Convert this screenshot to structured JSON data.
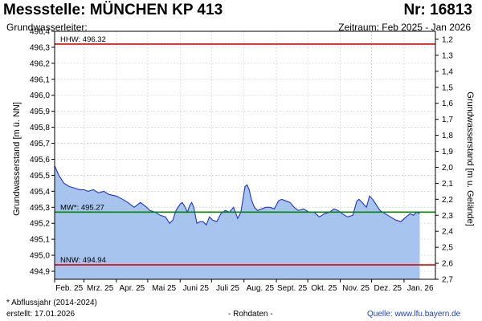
{
  "header": {
    "title": "Messstelle: MÜNCHEN KP 413",
    "number": "Nr: 16813",
    "aquifer": "Grundwasserleiter:",
    "period": "Zeitraum: Feb 2025 - Jan 2026"
  },
  "footer": {
    "footnote": "* Abflussjahr (2014-2024)",
    "created": "erstellt:  17.01.2026",
    "raw": "- Rohdaten -",
    "source": "Quelle:  www.lfu.bayern.de"
  },
  "colors": {
    "area_fill": "#a6c4ee",
    "line": "#2233cc",
    "hhw": "#dd0000",
    "nnw": "#dd0000",
    "mw": "#008800",
    "grid": "#d6d6d6"
  },
  "chart_data": {
    "type": "area",
    "ylabel": "Grundwasserstand [m ü. NN]",
    "y2label": "Grundwasserstand [m u. Gelände]",
    "ylim": [
      494.85,
      496.4
    ],
    "y2lim": [
      2.7,
      1.15
    ],
    "yticks": [
      "494,9",
      "495,0",
      "495,1",
      "495,2",
      "495,3",
      "495,4",
      "495,5",
      "495,6",
      "495,7",
      "495,8",
      "495,9",
      "496,0",
      "496,1",
      "496,2",
      "496,3",
      "496,4"
    ],
    "y2ticks": [
      "1,2",
      "1,3",
      "1,4",
      "1,5",
      "1,6",
      "1,7",
      "1,8",
      "1,9",
      "2,0",
      "2,1",
      "2,2",
      "2,3",
      "2,4",
      "2,5",
      "2,6",
      "2,7"
    ],
    "xlim": [
      "2025-02-01",
      "2026-01-31"
    ],
    "xticks": [
      "Feb. 25",
      "Mrz. 25",
      "Apr. 25",
      "Mai 25",
      "Juni 25",
      "Juli 25",
      "Aug. 25",
      "Sept. 25",
      "Okt. 25",
      "Nov. 25",
      "Dez. 25",
      "Jan. 26"
    ],
    "grid": true,
    "reference_lines": [
      {
        "label": "HHW: 496.32",
        "value": 496.32
      },
      {
        "label": "MW*: 495.27",
        "value": 495.27
      },
      {
        "label": "NNW: 494.94",
        "value": 494.94
      }
    ],
    "series": [
      {
        "x": [
          "2025-02-01",
          "2025-02-05",
          "2025-02-10",
          "2025-02-15",
          "2025-02-20",
          "2025-02-25",
          "2025-03-01",
          "2025-03-05",
          "2025-03-10",
          "2025-03-15",
          "2025-03-20",
          "2025-03-25",
          "2025-04-01",
          "2025-04-07",
          "2025-04-12",
          "2025-04-18",
          "2025-04-24",
          "2025-04-30",
          "2025-05-03",
          "2025-05-08",
          "2025-05-13",
          "2025-05-18",
          "2025-05-22",
          "2025-05-25",
          "2025-05-28",
          "2025-06-01",
          "2025-06-03",
          "2025-06-05",
          "2025-06-08",
          "2025-06-10",
          "2025-06-12",
          "2025-06-14",
          "2025-06-17",
          "2025-06-20",
          "2025-06-23",
          "2025-06-26",
          "2025-06-29",
          "2025-07-02",
          "2025-07-06",
          "2025-07-10",
          "2025-07-14",
          "2025-07-18",
          "2025-07-22",
          "2025-07-26",
          "2025-07-29",
          "2025-08-02",
          "2025-08-04",
          "2025-08-06",
          "2025-08-08",
          "2025-08-11",
          "2025-08-14",
          "2025-08-18",
          "2025-08-22",
          "2025-08-26",
          "2025-08-30",
          "2025-09-03",
          "2025-09-06",
          "2025-09-10",
          "2025-09-14",
          "2025-09-18",
          "2025-09-22",
          "2025-09-27",
          "2025-10-02",
          "2025-10-07",
          "2025-10-12",
          "2025-10-17",
          "2025-10-22",
          "2025-10-26",
          "2025-10-30",
          "2025-11-03",
          "2025-11-08",
          "2025-11-13",
          "2025-11-17",
          "2025-11-19",
          "2025-11-22",
          "2025-11-26",
          "2025-11-29",
          "2025-12-02",
          "2025-12-05",
          "2025-12-09",
          "2025-12-14",
          "2025-12-19",
          "2025-12-24",
          "2025-12-29",
          "2026-01-03",
          "2026-01-07",
          "2026-01-10",
          "2026-01-13",
          "2026-01-16"
        ],
        "values": [
          495.56,
          495.5,
          495.45,
          495.43,
          495.42,
          495.41,
          495.41,
          495.4,
          495.41,
          495.39,
          495.4,
          495.38,
          495.37,
          495.35,
          495.33,
          495.3,
          495.33,
          495.3,
          495.28,
          495.27,
          495.25,
          495.24,
          495.2,
          495.22,
          495.28,
          495.32,
          495.33,
          495.31,
          495.27,
          495.31,
          495.33,
          495.3,
          495.2,
          495.21,
          495.21,
          495.19,
          495.24,
          495.22,
          495.21,
          495.26,
          495.28,
          495.27,
          495.3,
          495.23,
          495.27,
          495.43,
          495.44,
          495.41,
          495.35,
          495.3,
          495.28,
          495.29,
          495.3,
          495.3,
          495.29,
          495.34,
          495.35,
          495.34,
          495.33,
          495.3,
          495.28,
          495.29,
          495.27,
          495.27,
          495.24,
          495.26,
          495.27,
          495.29,
          495.28,
          495.26,
          495.24,
          495.25,
          495.34,
          495.35,
          495.33,
          495.3,
          495.37,
          495.35,
          495.32,
          495.28,
          495.26,
          495.24,
          495.22,
          495.21,
          495.24,
          495.26,
          495.25,
          495.27,
          495.26
        ]
      }
    ]
  }
}
